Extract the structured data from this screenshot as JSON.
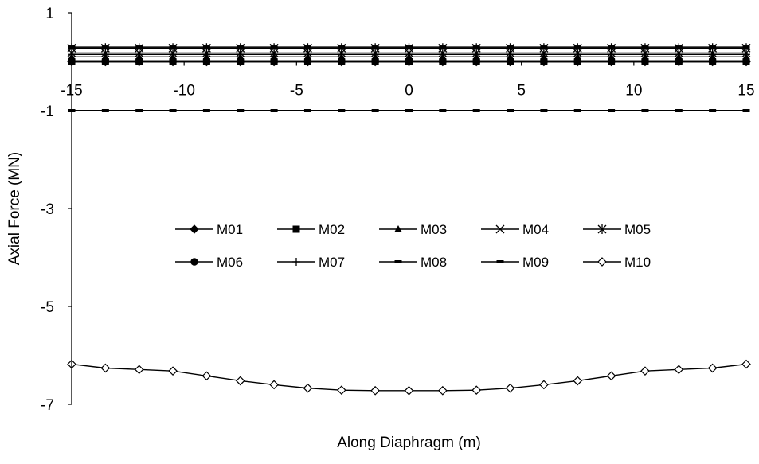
{
  "chart_data": {
    "type": "line",
    "xlabel": "Along Diaphragm (m)",
    "ylabel": "Axial Force (MN)",
    "xlim": [
      -15,
      15
    ],
    "ylim": [
      -7,
      1
    ],
    "x_ticks": [
      -15,
      -10,
      -5,
      0,
      5,
      10,
      15
    ],
    "y_ticks": [
      1,
      -1,
      -3,
      -5,
      -7
    ],
    "x_tick_labels": [
      "-15",
      "-10",
      "-5",
      "0",
      "5",
      "10",
      "15"
    ],
    "y_tick_labels": [
      "1",
      "-1",
      "-3",
      "-5",
      "-7"
    ],
    "grid": false,
    "legend_position": "center",
    "colors": {
      "line": "#000000",
      "background": "#ffffff"
    },
    "x": [
      -15,
      -13.5,
      -12,
      -10.5,
      -9,
      -7.5,
      -6,
      -4.5,
      -3,
      -1.5,
      0,
      1.5,
      3,
      4.5,
      6,
      7.5,
      9,
      10.5,
      12,
      13.5,
      15
    ],
    "series": [
      {
        "name": "M01",
        "marker": "diamond-filled",
        "values": [
          0,
          0,
          0,
          0,
          0,
          0,
          0,
          0,
          0,
          0,
          0,
          0,
          0,
          0,
          0,
          0,
          0,
          0,
          0,
          0,
          0
        ]
      },
      {
        "name": "M02",
        "marker": "square-filled",
        "values": [
          0,
          0,
          0,
          0,
          0,
          0,
          0,
          0,
          0,
          0,
          0,
          0,
          0,
          0,
          0,
          0,
          0,
          0,
          0,
          0,
          0
        ]
      },
      {
        "name": "M03",
        "marker": "triangle-filled",
        "values": [
          0.1,
          0.1,
          0.1,
          0.1,
          0.1,
          0.1,
          0.1,
          0.1,
          0.1,
          0.1,
          0.1,
          0.1,
          0.1,
          0.1,
          0.1,
          0.1,
          0.1,
          0.1,
          0.1,
          0.1,
          0.1
        ]
      },
      {
        "name": "M04",
        "marker": "x",
        "values": [
          0.18,
          0.18,
          0.18,
          0.18,
          0.18,
          0.18,
          0.18,
          0.18,
          0.18,
          0.18,
          0.18,
          0.18,
          0.18,
          0.18,
          0.18,
          0.18,
          0.18,
          0.18,
          0.18,
          0.18,
          0.18
        ]
      },
      {
        "name": "M05",
        "marker": "star",
        "values": [
          0.28,
          0.28,
          0.28,
          0.28,
          0.28,
          0.28,
          0.28,
          0.28,
          0.28,
          0.28,
          0.28,
          0.28,
          0.28,
          0.28,
          0.28,
          0.28,
          0.28,
          0.28,
          0.28,
          0.28,
          0.28
        ]
      },
      {
        "name": "M06",
        "marker": "circle-filled",
        "values": [
          0,
          0,
          0,
          0,
          0,
          0,
          0,
          0,
          0,
          0,
          0,
          0,
          0,
          0,
          0,
          0,
          0,
          0,
          0,
          0,
          0
        ]
      },
      {
        "name": "M07",
        "marker": "plus",
        "values": [
          0.15,
          0.15,
          0.15,
          0.15,
          0.15,
          0.15,
          0.15,
          0.15,
          0.15,
          0.15,
          0.15,
          0.15,
          0.15,
          0.15,
          0.15,
          0.15,
          0.15,
          0.15,
          0.15,
          0.15,
          0.15
        ]
      },
      {
        "name": "M08",
        "marker": "dash",
        "values": [
          0.3,
          0.3,
          0.3,
          0.3,
          0.3,
          0.3,
          0.3,
          0.3,
          0.3,
          0.3,
          0.3,
          0.3,
          0.3,
          0.3,
          0.3,
          0.3,
          0.3,
          0.3,
          0.3,
          0.3,
          0.3
        ]
      },
      {
        "name": "M09",
        "marker": "dash",
        "values": [
          -1,
          -1,
          -1,
          -1,
          -1,
          -1,
          -1,
          -1,
          -1,
          -1,
          -1,
          -1,
          -1,
          -1,
          -1,
          -1,
          -1,
          -1,
          -1,
          -1,
          -1
        ]
      },
      {
        "name": "M10",
        "marker": "diamond-open",
        "values": [
          -6.18,
          -6.26,
          -6.29,
          -6.32,
          -6.42,
          -6.52,
          -6.6,
          -6.67,
          -6.71,
          -6.72,
          -6.72,
          -6.72,
          -6.71,
          -6.67,
          -6.6,
          -6.52,
          -6.42,
          -6.32,
          -6.29,
          -6.26,
          -6.18
        ]
      }
    ]
  }
}
